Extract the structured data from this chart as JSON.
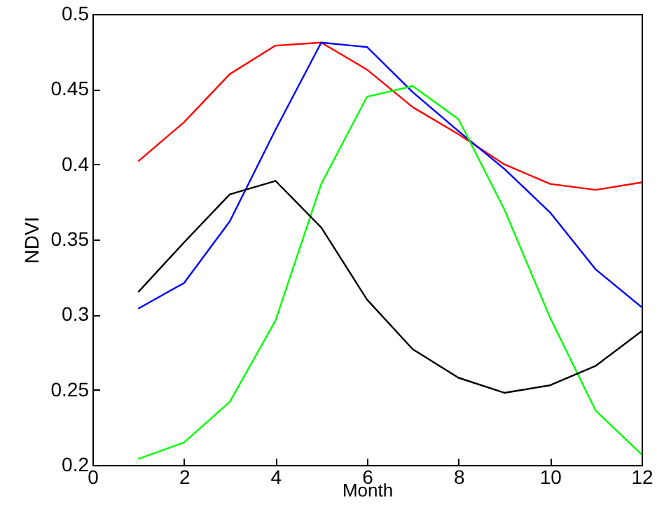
{
  "chart_data": {
    "type": "line",
    "xlabel": "Month",
    "ylabel": "NDVI",
    "x": [
      1,
      2,
      3,
      4,
      5,
      6,
      7,
      8,
      9,
      10,
      11,
      12
    ],
    "xlim": [
      0,
      12
    ],
    "xticks": [
      0,
      2,
      4,
      6,
      8,
      10,
      12
    ],
    "ylim": [
      0.2,
      0.5
    ],
    "yticks": [
      0.2,
      0.25,
      0.3,
      0.35,
      0.4,
      0.45,
      0.5
    ],
    "grid": false,
    "series": [
      {
        "color": "#ff0000",
        "values": [
          0.402,
          0.428,
          0.46,
          0.479,
          0.481,
          0.463,
          0.438,
          0.42,
          0.4,
          0.387,
          0.383,
          0.388
        ]
      },
      {
        "color": "#0000ff",
        "values": [
          0.304,
          0.321,
          0.362,
          0.423,
          0.481,
          0.478,
          0.448,
          0.422,
          0.397,
          0.368,
          0.33,
          0.305
        ]
      },
      {
        "color": "#00ff00",
        "values": [
          0.204,
          0.215,
          0.242,
          0.296,
          0.387,
          0.445,
          0.452,
          0.43,
          0.37,
          0.298,
          0.236,
          0.207
        ]
      },
      {
        "color": "#000000",
        "values": [
          0.315,
          0.348,
          0.38,
          0.389,
          0.358,
          0.31,
          0.277,
          0.258,
          0.248,
          0.253,
          0.266,
          0.289
        ]
      }
    ]
  }
}
